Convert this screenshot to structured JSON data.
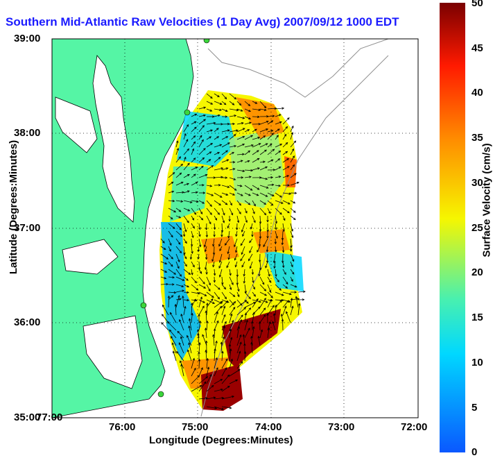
{
  "title": "Southern Mid-Atlantic Raw Velocities (1 Day Avg) 2007/09/12 1000 EDT",
  "x_axis": {
    "label": "Longitude (Degrees:Minutes)",
    "ticks": [
      "77:00",
      "76:00",
      "75:00",
      "74:00",
      "73:00",
      "72:00"
    ]
  },
  "y_axis": {
    "label": "Latitude (Degrees:Minutes)",
    "ticks": [
      "35:00",
      "36:00",
      "37:00",
      "38:00",
      "39:00"
    ]
  },
  "colorbar": {
    "label": "Surface Velocity (cm/s)",
    "ticks": [
      "0",
      "5",
      "10",
      "15",
      "20",
      "25",
      "30",
      "35",
      "40",
      "45",
      "50"
    ],
    "min": 0,
    "max": 50,
    "colors": [
      "#0a58ff",
      "#00d8ff",
      "#48f0b0",
      "#f6f600",
      "#ff8a00",
      "#ff1a00",
      "#7a0000"
    ]
  },
  "map": {
    "lon_range": [
      -77,
      -72
    ],
    "lat_range": [
      35,
      39
    ],
    "land_color": "#55f5a5",
    "grid": "dotted"
  }
}
